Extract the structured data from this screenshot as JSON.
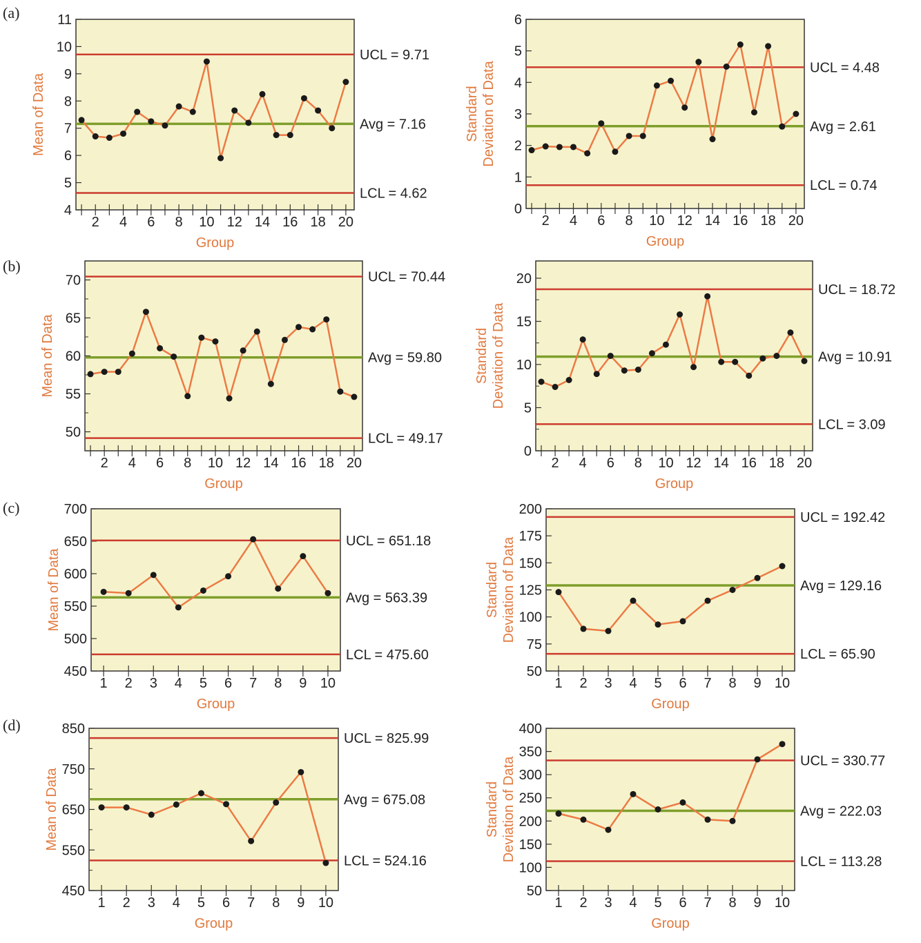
{
  "colors": {
    "plot_background": "#f6f3cc",
    "limit_line": "#cc3b2e",
    "average_line": "#7e9e2b",
    "series_line": "#ec7a45",
    "marker": "#1a1a1a",
    "axis_title": "#e07a3f"
  },
  "rows": [
    {
      "label": "(a)"
    },
    {
      "label": "(b)"
    },
    {
      "label": "(c)"
    },
    {
      "label": "(d)"
    }
  ],
  "chart_data": [
    {
      "id": "a-mean",
      "row": 0,
      "col": 0,
      "type": "line",
      "ylabel": [
        "Mean of Data"
      ],
      "xlabel": "Group",
      "ylim": [
        4,
        11
      ],
      "xlim": [
        0.6,
        20.6
      ],
      "yticks": [
        4,
        5,
        6,
        7,
        8,
        9,
        10,
        11
      ],
      "y_minor_step": null,
      "xtick_labels": [
        2,
        4,
        6,
        8,
        10,
        12,
        14,
        16,
        18,
        20
      ],
      "x_minor_ticks": true,
      "x": [
        1,
        2,
        3,
        4,
        5,
        6,
        7,
        8,
        9,
        10,
        11,
        12,
        13,
        14,
        15,
        16,
        17,
        18,
        19,
        20
      ],
      "values": [
        7.3,
        6.7,
        6.65,
        6.8,
        7.6,
        7.25,
        7.1,
        7.8,
        7.6,
        9.45,
        5.9,
        7.65,
        7.2,
        8.25,
        6.75,
        6.75,
        8.1,
        7.65,
        7.0,
        8.7
      ],
      "lines": {
        "ucl": 9.71,
        "avg": 7.16,
        "lcl": 4.62
      },
      "line_labels": {
        "ucl": "UCL = 9.71",
        "avg": "Avg = 7.16",
        "lcl": "LCL = 4.62"
      }
    },
    {
      "id": "a-sd",
      "row": 0,
      "col": 1,
      "type": "line",
      "ylabel": [
        "Standard",
        "Deviation of Data"
      ],
      "xlabel": "Group",
      "ylim": [
        0,
        6
      ],
      "xlim": [
        0.6,
        20.6
      ],
      "yticks": [
        0,
        1,
        2,
        3,
        4,
        5,
        6
      ],
      "y_minor_step": null,
      "xtick_labels": [
        2,
        4,
        6,
        8,
        10,
        12,
        14,
        16,
        18,
        20
      ],
      "x_minor_ticks": true,
      "x": [
        1,
        2,
        3,
        4,
        5,
        6,
        7,
        8,
        9,
        10,
        11,
        12,
        13,
        14,
        15,
        16,
        17,
        18,
        19,
        20
      ],
      "values": [
        1.85,
        1.97,
        1.95,
        1.95,
        1.75,
        2.7,
        1.8,
        2.3,
        2.3,
        3.9,
        4.05,
        3.2,
        4.65,
        2.2,
        4.5,
        5.2,
        3.05,
        5.15,
        2.6,
        3.0
      ],
      "lines": {
        "ucl": 4.48,
        "avg": 2.61,
        "lcl": 0.74
      },
      "line_labels": {
        "ucl": "UCL = 4.48",
        "avg": "Avg = 2.61",
        "lcl": "LCL = 0.74"
      }
    },
    {
      "id": "b-mean",
      "row": 1,
      "col": 0,
      "type": "line",
      "ylabel": [
        "Mean of Data"
      ],
      "xlabel": "Group",
      "ylim": [
        47.5,
        72.5
      ],
      "xlim": [
        0.6,
        20.6
      ],
      "yticks": [
        50,
        55,
        60,
        65,
        70
      ],
      "y_minor_step": 2.5,
      "xtick_labels": [
        2,
        4,
        6,
        8,
        10,
        12,
        14,
        16,
        18,
        20
      ],
      "x_minor_ticks": true,
      "x": [
        1,
        2,
        3,
        4,
        5,
        6,
        7,
        8,
        9,
        10,
        11,
        12,
        13,
        14,
        15,
        16,
        17,
        18,
        19,
        20
      ],
      "values": [
        57.6,
        57.9,
        57.9,
        60.3,
        65.8,
        61.0,
        59.9,
        54.7,
        62.4,
        61.9,
        54.4,
        60.7,
        63.2,
        56.3,
        62.1,
        63.8,
        63.5,
        64.8,
        55.3,
        54.6
      ],
      "lines": {
        "ucl": 70.44,
        "avg": 59.8,
        "lcl": 49.17
      },
      "line_labels": {
        "ucl": "UCL = 70.44",
        "avg": "Avg = 59.80",
        "lcl": "LCL = 49.17"
      }
    },
    {
      "id": "b-sd",
      "row": 1,
      "col": 1,
      "type": "line",
      "ylabel": [
        "Standard",
        "Deviation of Data"
      ],
      "xlabel": "Group",
      "ylim": [
        0,
        22
      ],
      "xlim": [
        0.6,
        20.6
      ],
      "yticks": [
        0,
        5,
        10,
        15,
        20
      ],
      "y_minor_step": 2.5,
      "xtick_labels": [
        2,
        4,
        6,
        8,
        10,
        12,
        14,
        16,
        18,
        20
      ],
      "x_minor_ticks": true,
      "x": [
        1,
        2,
        3,
        4,
        5,
        6,
        7,
        8,
        9,
        10,
        11,
        12,
        13,
        14,
        15,
        16,
        17,
        18,
        19,
        20
      ],
      "values": [
        8.0,
        7.4,
        8.2,
        12.9,
        8.9,
        11.0,
        9.3,
        9.4,
        11.3,
        12.3,
        15.8,
        9.7,
        17.9,
        10.3,
        10.3,
        8.7,
        10.7,
        11.0,
        13.7,
        10.4
      ],
      "lines": {
        "ucl": 18.72,
        "avg": 10.91,
        "lcl": 3.09
      },
      "line_labels": {
        "ucl": "UCL = 18.72",
        "avg": "Avg = 10.91",
        "lcl": "LCL = 3.09"
      }
    },
    {
      "id": "c-mean",
      "row": 2,
      "col": 0,
      "type": "line",
      "ylabel": [
        "Mean of Data"
      ],
      "xlabel": "Group",
      "ylim": [
        450,
        700
      ],
      "xlim": [
        0.5,
        10.5
      ],
      "yticks": [
        450,
        500,
        550,
        600,
        650,
        700
      ],
      "y_minor_step": null,
      "xtick_labels": [
        1,
        2,
        3,
        4,
        5,
        6,
        7,
        8,
        9,
        10
      ],
      "x_minor_ticks": false,
      "x": [
        1,
        2,
        3,
        4,
        5,
        6,
        7,
        8,
        9,
        10
      ],
      "values": [
        572,
        570,
        598,
        548,
        574,
        596,
        653,
        577,
        627,
        570
      ],
      "lines": {
        "ucl": 651.18,
        "avg": 563.39,
        "lcl": 475.6
      },
      "line_labels": {
        "ucl": "UCL = 651.18",
        "avg": "Avg = 563.39",
        "lcl": "LCL = 475.60"
      }
    },
    {
      "id": "c-sd",
      "row": 2,
      "col": 1,
      "type": "line",
      "ylabel": [
        "Standard",
        "Deviation of Data"
      ],
      "xlabel": "Group",
      "ylim": [
        50,
        200
      ],
      "xlim": [
        0.5,
        10.5
      ],
      "yticks": [
        50,
        75,
        100,
        125,
        150,
        175,
        200
      ],
      "y_minor_step": null,
      "xtick_labels": [
        1,
        2,
        3,
        4,
        5,
        6,
        7,
        8,
        9,
        10
      ],
      "x_minor_ticks": false,
      "x": [
        1,
        2,
        3,
        4,
        5,
        6,
        7,
        8,
        9,
        10
      ],
      "values": [
        123,
        89,
        87,
        115,
        93,
        96,
        115,
        125,
        136,
        147
      ],
      "lines": {
        "ucl": 192.42,
        "avg": 129.16,
        "lcl": 65.9
      },
      "line_labels": {
        "ucl": "UCL = 192.42",
        "avg": "Avg = 129.16",
        "lcl": "LCL = 65.90"
      }
    },
    {
      "id": "d-mean",
      "row": 3,
      "col": 0,
      "type": "line",
      "ylabel": [
        "Mean of Data"
      ],
      "xlabel": "Group",
      "ylim": [
        450,
        850
      ],
      "xlim": [
        0.5,
        10.5
      ],
      "yticks": [
        450,
        550,
        650,
        750,
        850
      ],
      "y_minor_step": 50,
      "xtick_labels": [
        1,
        2,
        3,
        4,
        5,
        6,
        7,
        8,
        9,
        10
      ],
      "x_minor_ticks": false,
      "x": [
        1,
        2,
        3,
        4,
        5,
        6,
        7,
        8,
        9,
        10
      ],
      "values": [
        655,
        655,
        637,
        662,
        690,
        663,
        572,
        667,
        742,
        518
      ],
      "lines": {
        "ucl": 825.99,
        "avg": 675.08,
        "lcl": 524.16
      },
      "line_labels": {
        "ucl": "UCL = 825.99",
        "avg": "Avg = 675.08",
        "lcl": "LCL = 524.16"
      }
    },
    {
      "id": "d-sd",
      "row": 3,
      "col": 1,
      "type": "line",
      "ylabel": [
        "Standard",
        "Deviation of Data"
      ],
      "xlabel": "Group",
      "ylim": [
        50,
        400
      ],
      "xlim": [
        0.5,
        10.5
      ],
      "yticks": [
        50,
        100,
        150,
        200,
        250,
        300,
        350,
        400
      ],
      "y_minor_step": null,
      "xtick_labels": [
        1,
        2,
        3,
        4,
        5,
        6,
        7,
        8,
        9,
        10
      ],
      "x_minor_ticks": false,
      "x": [
        1,
        2,
        3,
        4,
        5,
        6,
        7,
        8,
        9,
        10
      ],
      "values": [
        216,
        203,
        181,
        258,
        225,
        240,
        203,
        200,
        333,
        366
      ],
      "lines": {
        "ucl": 330.77,
        "avg": 222.03,
        "lcl": 113.28
      },
      "line_labels": {
        "ucl": "UCL = 330.77",
        "avg": "Avg = 222.03",
        "lcl": "LCL = 113.28"
      }
    }
  ]
}
